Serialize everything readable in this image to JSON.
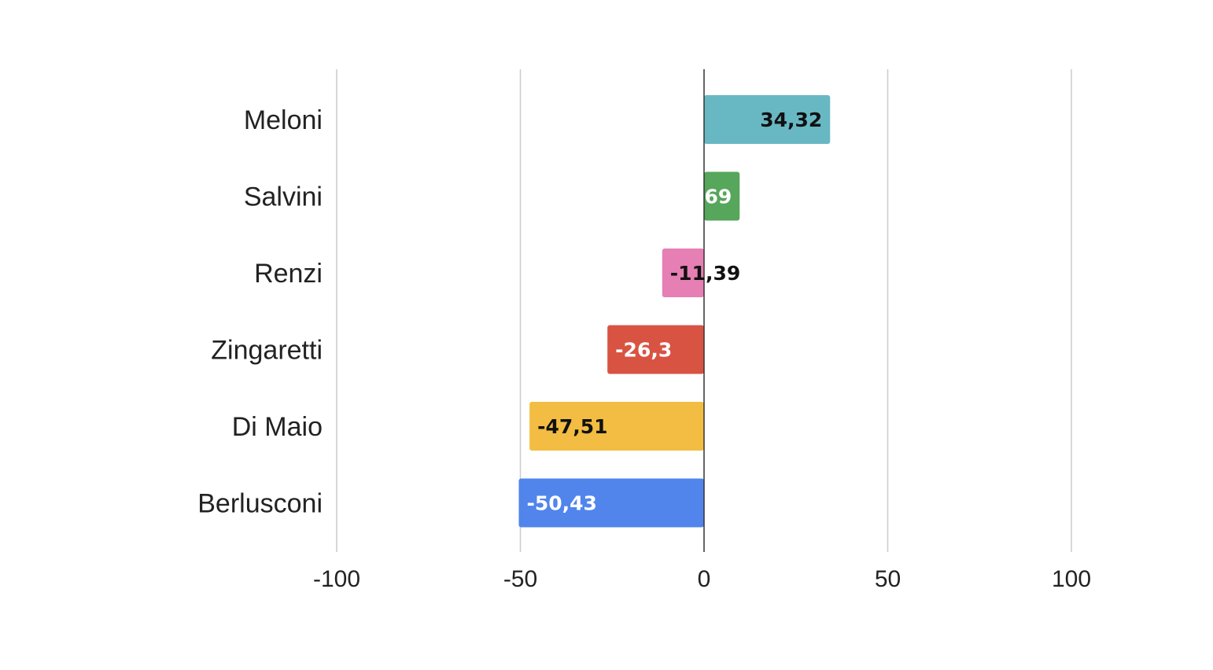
{
  "chart_data": {
    "type": "bar",
    "orientation": "horizontal",
    "title": "",
    "xlabel": "",
    "ylabel": "",
    "xlim": [
      -100,
      100
    ],
    "ticks": [
      -100,
      -50,
      0,
      50,
      100
    ],
    "grid": true,
    "legend": "none",
    "bars": [
      {
        "category": "Meloni",
        "value": 34.32,
        "label": "34,32",
        "color": "#68b8c4",
        "label_color": "#111111"
      },
      {
        "category": "Salvini",
        "value": 9.69,
        "label": "9,69",
        "color": "#56a65b",
        "label_color": "#ffffff"
      },
      {
        "category": "Renzi",
        "value": -11.39,
        "label": "-11,39",
        "color": "#e67fb3",
        "label_color": "#111111"
      },
      {
        "category": "Zingaretti",
        "value": -26.3,
        "label": "-26,3",
        "color": "#d95343",
        "label_color": "#ffffff"
      },
      {
        "category": "Di Maio",
        "value": -47.51,
        "label": "-47,51",
        "color": "#f2bd42",
        "label_color": "#111111"
      },
      {
        "category": "Berlusconi",
        "value": -50.43,
        "label": "-50,43",
        "color": "#5185ec",
        "label_color": "#ffffff"
      }
    ]
  }
}
